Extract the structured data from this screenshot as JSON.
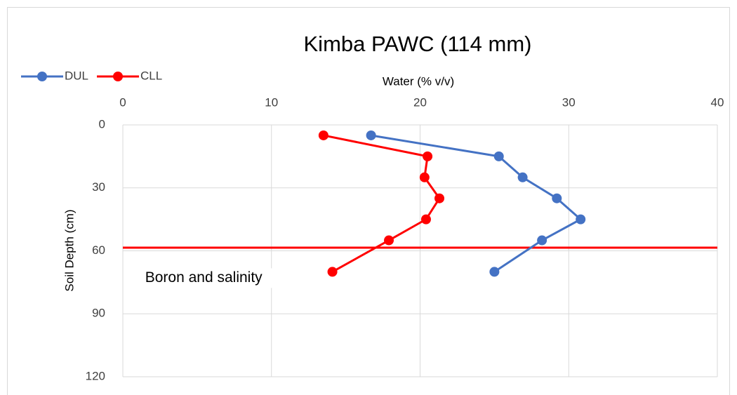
{
  "chart_data": {
    "type": "line",
    "title": "Kimba PAWC (114 mm)",
    "x_label": "Water (% v/v)",
    "y_label": "Soil Depth (cm)",
    "xlim": [
      0,
      40
    ],
    "xticks": [
      0,
      10,
      20,
      30,
      40
    ],
    "ylim": [
      0,
      120
    ],
    "yticks": [
      0,
      30,
      60,
      90,
      120
    ],
    "y_inverted": true,
    "grid": true,
    "legend": "top-left",
    "series": [
      {
        "name": "DUL",
        "color": "#4472c4",
        "x": [
          16.7,
          25.3,
          26.9,
          29.2,
          30.8,
          28.2,
          25.0
        ],
        "values": [
          5,
          15,
          25,
          35,
          45,
          55,
          70
        ]
      },
      {
        "name": "CLL",
        "color": "#ff0000",
        "x": [
          13.5,
          20.5,
          20.3,
          21.3,
          20.4,
          17.9,
          14.1
        ],
        "values": [
          5,
          15,
          25,
          35,
          45,
          55,
          70
        ]
      }
    ],
    "reference_line": {
      "value": 58.5,
      "color": "#ff0000"
    },
    "annotation": {
      "text": "Boron and salinity",
      "x": 1.5,
      "y": 73
    }
  }
}
